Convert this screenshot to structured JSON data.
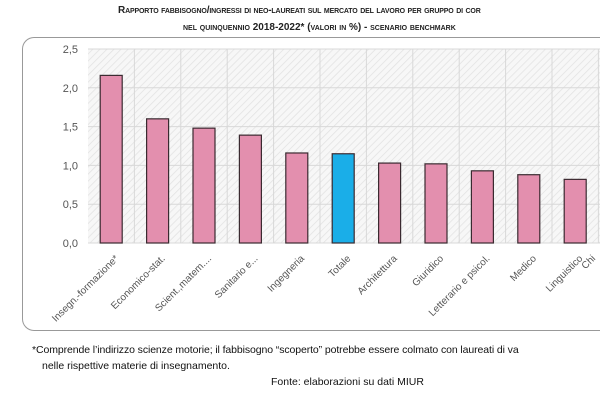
{
  "chart_data": {
    "type": "bar",
    "title_line1": "Rapporto fabbisogno/ingressi di neo-laureati sul mercato del lavoro per gruppo di cor",
    "title_line2": "nel quinquennio 2018-2022* (valori in %) - scenario benchmark",
    "categories": [
      "Insegn.-formazione*",
      "Economico-stat.",
      "Scient.,matem....",
      "Sanitario e...",
      "Ingegneria",
      "Totale",
      "Architettura",
      "Giuridico",
      "Letterario e psicol.",
      "Medico",
      "Linguistico",
      "Chi"
    ],
    "values": [
      2.16,
      1.6,
      1.48,
      1.39,
      1.16,
      1.15,
      1.03,
      1.02,
      0.93,
      0.88,
      0.82,
      null
    ],
    "highlight": "Totale",
    "ylim": [
      0,
      2.5
    ],
    "yticks": [
      "0,0",
      "0,5",
      "1,0",
      "1,5",
      "2,0",
      "2,5"
    ],
    "grid": true,
    "colors": {
      "bar": "#e38fae",
      "highlight": "#1aaee8",
      "bar_border": "#3a2a30",
      "grid": "#d8d8d8",
      "hatch": "#e4e4e4"
    }
  },
  "footnote_line1": "*Comprende l’indirizzo scienze motorie; il fabbisogno “scoperto” potrebbe essere colmato con laureati di va",
  "footnote_line2": "nelle rispettive materie di insegnamento.",
  "source": "Fonte: elaborazioni su dati MIUR"
}
